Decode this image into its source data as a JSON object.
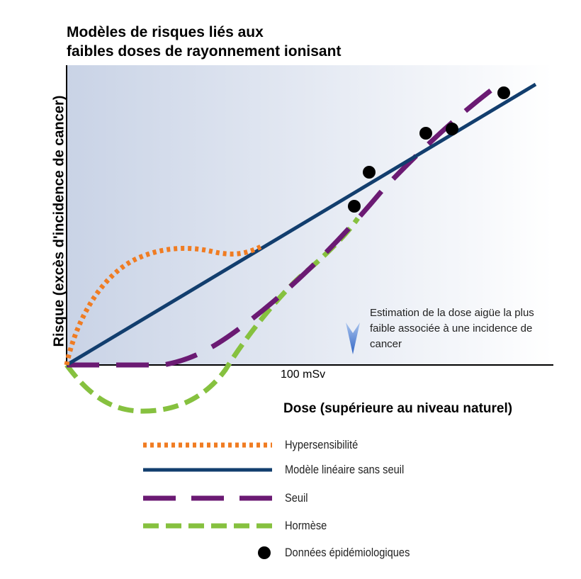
{
  "chart_data": {
    "type": "line",
    "title_lines": [
      "Modèles de risques liés aux",
      "faibles doses de rayonnement ionisant"
    ],
    "xlabel": "Dose (supérieure au niveau naturel)",
    "ylabel": "Risque (excès d'incidence de cancer)",
    "x_tick_labels": [
      "100 mSv"
    ],
    "annotation": "Estimation de la dose aigüe la plus faible associée à une incidence de cancer",
    "series": [
      {
        "name": "Hypersensibilité",
        "color": "#f07c22",
        "style": "dotted"
      },
      {
        "name": "Modèle linéaire sans seuil",
        "color": "#123e6e",
        "style": "solid"
      },
      {
        "name": "Seuil",
        "color": "#6b1a73",
        "style": "long-dash"
      },
      {
        "name": "Hormèse",
        "color": "#86c13f",
        "style": "dash"
      },
      {
        "name": "Données épidémiologiques",
        "color": "#000000",
        "style": "marker"
      }
    ]
  },
  "colors": {
    "background_gradient_start": "#c9d3e6",
    "background_gradient_end": "#ffffff",
    "annotation_arrow": "#4a7bd1"
  }
}
